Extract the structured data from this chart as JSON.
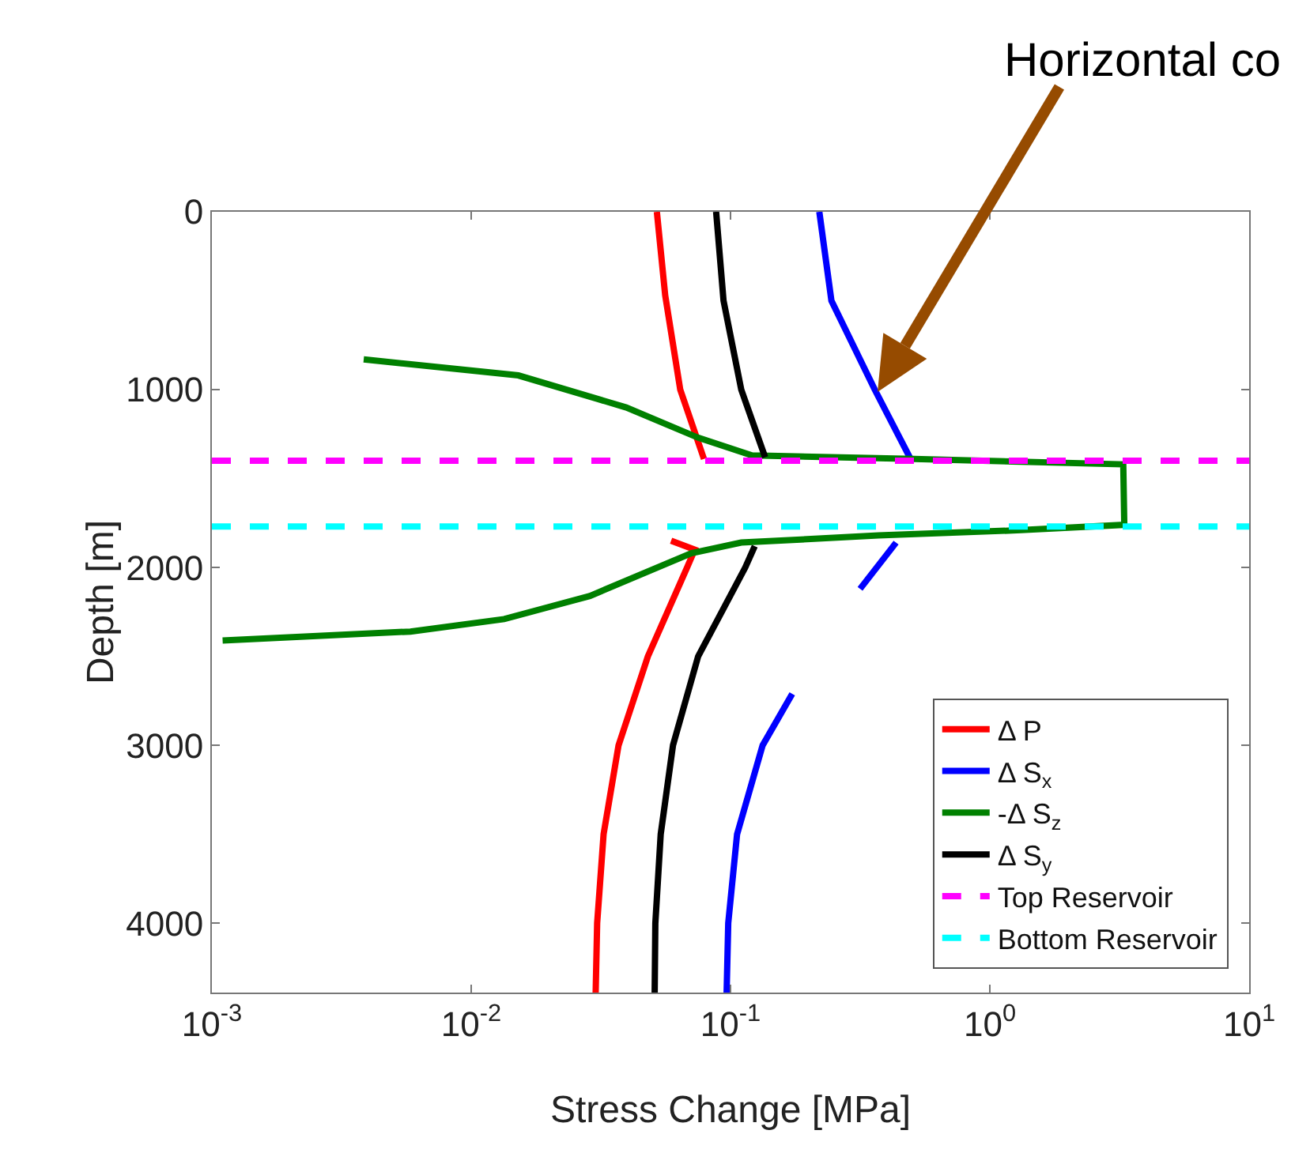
{
  "chart_data": {
    "type": "line",
    "xlabel": "Stress Change [MPa]",
    "ylabel": "Depth [m]",
    "log": "x",
    "xlim": [
      0.001,
      10
    ],
    "xticks": [
      {
        "value": 0.001,
        "label": "10$^{-3}$"
      },
      {
        "value": 0.01,
        "label": "10$^{-2}$"
      },
      {
        "value": 0.1,
        "label": "10$^{-1}$"
      },
      {
        "value": 1,
        "label": "10$^{0}$"
      },
      {
        "value": 10,
        "label": "10$^{1}$"
      }
    ],
    "ylim": [
      4390,
      0
    ],
    "yticks": [
      0,
      1000,
      2000,
      3000,
      4000
    ],
    "grid": false,
    "legend": "bottom right",
    "marker": "none",
    "line_style": "solid",
    "annotations": [
      "Horizontal co"
    ],
    "series": [
      {
        "name": "Δ P",
        "color": "#ff0000",
        "x": [
          0.052,
          0.056,
          0.064,
          0.079,
          null,
          0.059,
          0.0728,
          0.068,
          0.048,
          0.037,
          0.0324,
          0.0306,
          0.0302
        ],
        "values": [
          0,
          470,
          1000,
          1390,
          null,
          1850,
          1900,
          2000,
          2500,
          3000,
          3500,
          4000,
          4390
        ]
      },
      {
        "name": "Δ S$_{x}$",
        "color": "#0000ff",
        "x": [
          0.22,
          0.245,
          0.36,
          0.495,
          null,
          0.435,
          0.316,
          null,
          0.173,
          0.133,
          0.106,
          0.098,
          0.0966
        ],
        "values": [
          0,
          500,
          1000,
          1390,
          null,
          1860,
          2120,
          null,
          2710,
          3000,
          3500,
          4000,
          4390
        ]
      },
      {
        "name": "-Δ S$_{z}$",
        "color": "#008000",
        "x": [
          0.00385,
          0.0152,
          0.0396,
          0.075,
          0.121,
          0.51,
          3.27,
          3.3,
          1.32,
          0.372,
          0.11,
          0.0706,
          0.0287,
          0.0134,
          0.00583,
          0.0011
        ],
        "values": [
          830,
          920,
          1100,
          1270,
          1370,
          1390,
          1420,
          1760,
          1790,
          1820,
          1860,
          1920,
          2160,
          2290,
          2360,
          2410
        ]
      },
      {
        "name": "Δ S$_{y}$",
        "color": "#000000",
        "x": [
          0.088,
          0.094,
          0.11,
          0.136,
          null,
          0.124,
          0.114,
          0.075,
          0.06,
          0.0538,
          0.0513,
          0.051
        ],
        "values": [
          0,
          500,
          1000,
          1380,
          null,
          1880,
          2000,
          2500,
          3000,
          3500,
          4000,
          4390
        ]
      },
      {
        "name": "Top Reservoir",
        "color": "#ff00ff",
        "line_style": "dashed",
        "x": [
          0.001,
          10
        ],
        "values": [
          1400,
          1400
        ]
      },
      {
        "name": "Bottom Reservoir",
        "color": "#00ffff",
        "line_style": "dashed",
        "x": [
          0.001,
          10
        ],
        "values": [
          1770,
          1770
        ]
      }
    ]
  }
}
